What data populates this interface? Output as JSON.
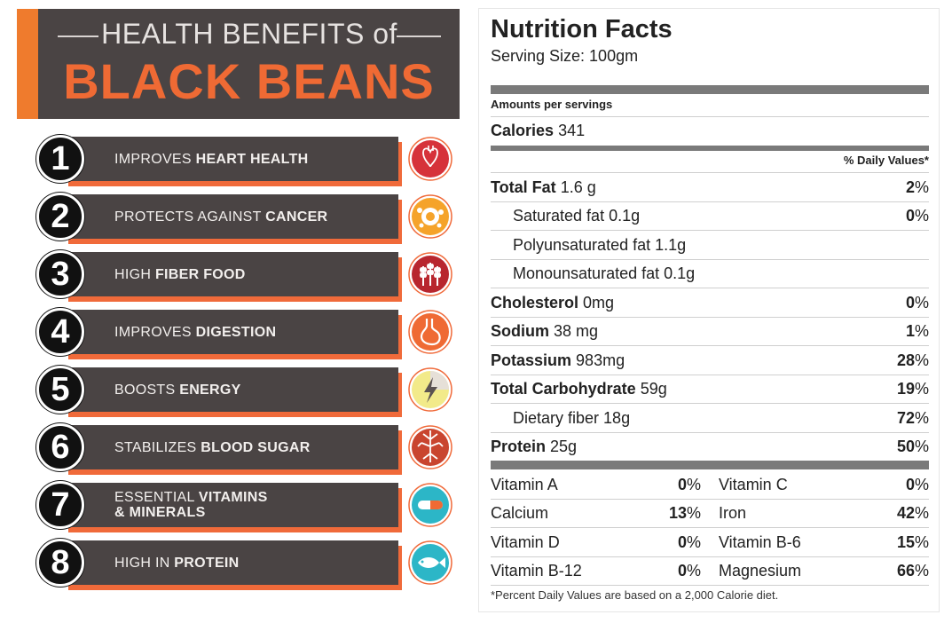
{
  "infographic": {
    "heading_top": "HEALTH BENEFITS of",
    "heading_main": "BLACK BEANS",
    "colors": {
      "banner": "#4a4444",
      "accent": "#ef6a34",
      "stripe": "#ef7b2d"
    },
    "benefits": [
      {
        "number": "1",
        "prefix": "IMPROVES ",
        "highlight": "HEART HEALTH",
        "icon": "heart-icon"
      },
      {
        "number": "2",
        "prefix": "PROTECTS AGAINST ",
        "highlight": "CANCER",
        "icon": "cell-icon"
      },
      {
        "number": "3",
        "prefix": "HIGH ",
        "highlight": "FIBER FOOD",
        "icon": "wheat-icon"
      },
      {
        "number": "4",
        "prefix": "IMPROVES ",
        "highlight": "DIGESTION",
        "icon": "stomach-icon"
      },
      {
        "number": "5",
        "prefix": "BOOSTS ",
        "highlight": "ENERGY",
        "icon": "lightning-icon"
      },
      {
        "number": "6",
        "prefix": "STABILIZES ",
        "highlight": "BLOOD SUGAR",
        "icon": "blood-vessel-icon"
      },
      {
        "number": "7",
        "prefix": "ESSENTIAL ",
        "highlight": "VITAMINS",
        "line2": "& MINERALS",
        "icon": "capsule-icon"
      },
      {
        "number": "8",
        "prefix": "HIGH IN ",
        "highlight": "PROTEIN",
        "icon": "fish-icon"
      }
    ]
  },
  "nutrition": {
    "title": "Nutrition Facts",
    "serving": "Serving Size: 100gm",
    "amount_label": "Amounts per servings",
    "calories_label": "Calories",
    "calories_value": "341",
    "daily_values_header": "% Daily Values*",
    "rows": [
      {
        "name": "Total Fat",
        "amount": "1.6 g",
        "pct": "2",
        "bold": true
      },
      {
        "name": "Saturated fat",
        "amount": "0.1g",
        "pct": "0",
        "bold": false,
        "sub": true
      },
      {
        "name": "Polyunsaturated fat",
        "amount": "1.1g",
        "pct": "",
        "bold": false,
        "sub": true
      },
      {
        "name": "Monounsaturated fat",
        "amount": "0.1g",
        "pct": "",
        "bold": false,
        "sub": true
      },
      {
        "name": "Cholesterol",
        "amount": "0mg",
        "pct": "0",
        "bold": true
      },
      {
        "name": "Sodium",
        "amount": "38 mg",
        "pct": "1",
        "bold": true
      },
      {
        "name": "Potassium",
        "amount": "983mg",
        "pct": "28",
        "bold": true
      },
      {
        "name": "Total Carbohydrate",
        "amount": "59g",
        "pct": "19",
        "bold": true
      },
      {
        "name": "Dietary fiber",
        "amount": "18g",
        "pct": "72",
        "bold": false,
        "sub": true
      },
      {
        "name": "Protein",
        "amount": "25g",
        "pct": "50",
        "bold": true
      }
    ],
    "vitamins": [
      {
        "left_name": "Vitamin A",
        "left_pct": "0",
        "right_name": "Vitamin C",
        "right_pct": "0"
      },
      {
        "left_name": "Calcium",
        "left_pct": "13",
        "right_name": "Iron",
        "right_pct": "42"
      },
      {
        "left_name": "Vitamin D",
        "left_pct": "0",
        "right_name": "Vitamin B-6",
        "right_pct": "15"
      },
      {
        "left_name": "Vitamin B-12",
        "left_pct": "0",
        "right_name": "Magnesium",
        "right_pct": "66"
      }
    ],
    "footnote": "*Percent Daily Values are based on a 2,000 Calorie diet."
  }
}
